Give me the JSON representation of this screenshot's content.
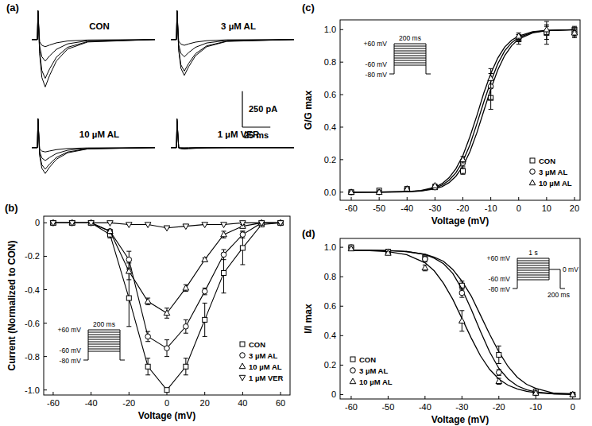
{
  "chart_data": [
    {
      "type": "line",
      "panel": "(a)",
      "title": "CON",
      "tick_labels": false,
      "color": "#000000",
      "x": [
        0,
        5,
        5.5,
        7,
        9,
        12,
        16,
        22,
        32,
        50,
        110
      ],
      "xlim": [
        0,
        110
      ],
      "ylim": [
        -350,
        220
      ],
      "series": [
        {
          "values": [
            0,
            0,
            200,
            -99,
            -264,
            -330,
            -248,
            -149,
            -66,
            -17,
            0
          ]
        },
        {
          "values": [
            0,
            0,
            200,
            -81,
            -216,
            -270,
            -203,
            -122,
            -54,
            -14,
            0
          ]
        },
        {
          "values": [
            0,
            0,
            200,
            -45,
            -120,
            -150,
            -113,
            -68,
            -30,
            -8,
            0
          ]
        },
        {
          "values": [
            0,
            0,
            200,
            -15,
            -40,
            -50,
            -38,
            -23,
            -10,
            -3,
            0
          ]
        }
      ]
    },
    {
      "type": "line",
      "title": "3 µM AL",
      "tick_labels": false,
      "color": "#000000",
      "x": [
        0,
        5,
        5.5,
        7,
        9,
        12,
        16,
        22,
        32,
        50,
        110
      ],
      "xlim": [
        0,
        110
      ],
      "ylim": [
        -350,
        220
      ],
      "series": [
        {
          "values": [
            0,
            0,
            200,
            -75,
            -200,
            -250,
            -188,
            -113,
            -50,
            -13,
            0
          ]
        },
        {
          "values": [
            0,
            0,
            200,
            -66,
            -176,
            -220,
            -165,
            -99,
            -44,
            -11,
            0
          ]
        },
        {
          "values": [
            0,
            0,
            200,
            -36,
            -96,
            -120,
            -90,
            -54,
            -24,
            -6,
            0
          ]
        },
        {
          "values": [
            0,
            0,
            200,
            -12,
            -32,
            -40,
            -30,
            -18,
            -8,
            -2,
            0
          ]
        }
      ],
      "scale_bar": {
        "y": 250,
        "y_label": "250 pA",
        "x": 25,
        "x_label": "25 ms"
      }
    },
    {
      "type": "line",
      "title": "10 µM AL",
      "tick_labels": false,
      "color": "#000000",
      "x": [
        0,
        5,
        5.5,
        7,
        9,
        12,
        16,
        22,
        32,
        50,
        110
      ],
      "xlim": [
        0,
        110
      ],
      "ylim": [
        -350,
        220
      ],
      "series": [
        {
          "values": [
            0,
            0,
            200,
            -54,
            -144,
            -180,
            -135,
            -81,
            -36,
            -9,
            0
          ]
        },
        {
          "values": [
            0,
            0,
            200,
            -45,
            -120,
            -150,
            -113,
            -68,
            -30,
            -8,
            0
          ]
        },
        {
          "values": [
            0,
            0,
            200,
            -27,
            -72,
            -90,
            -68,
            -41,
            -18,
            -5,
            0
          ]
        },
        {
          "values": [
            0,
            0,
            200,
            -9,
            -24,
            -30,
            -23,
            -14,
            -6,
            -2,
            0
          ]
        }
      ]
    },
    {
      "type": "line",
      "title": "1 µM VER",
      "tick_labels": false,
      "color": "#000000",
      "x": [
        0,
        5,
        5.5,
        7,
        9,
        12,
        16,
        22,
        32,
        50,
        110
      ],
      "xlim": [
        0,
        110
      ],
      "ylim": [
        -350,
        220
      ],
      "series": [
        {
          "values": [
            0,
            0,
            200,
            -3,
            -8,
            -10,
            -8,
            -5,
            -2,
            0,
            0
          ]
        },
        {
          "values": [
            0,
            0,
            200,
            -2,
            -4,
            -5,
            -4,
            -2,
            -1,
            0,
            0
          ]
        },
        {
          "values": [
            0,
            0,
            190,
            -1,
            -2,
            -3,
            -2,
            -1,
            0,
            0,
            0
          ]
        },
        {
          "values": [
            0,
            0,
            180,
            0,
            -1,
            -1,
            -1,
            0,
            0,
            0,
            0
          ]
        }
      ]
    },
    {
      "type": "line",
      "panel": "(b)",
      "color": "#000000",
      "x_label": "Voltage (mV)",
      "y_label": "Current (Normalized to CON)",
      "x": [
        -60,
        -50,
        -40,
        -30,
        -20,
        -10,
        0,
        10,
        20,
        30,
        40,
        50,
        60
      ],
      "xlim": [
        -65,
        65
      ],
      "xticks": [
        -60,
        -40,
        -20,
        0,
        20,
        40,
        60
      ],
      "ylim": [
        -1.03,
        0.04
      ],
      "yticks": [
        {
          "value": -1,
          "label": "-1.0"
        },
        -0.8,
        -0.6,
        -0.4,
        -0.2,
        0
      ],
      "legend": "lower right",
      "series": [
        {
          "name": "CON",
          "marker": "square",
          "line_style": "solid",
          "values": [
            0,
            0,
            0,
            -0.07,
            -0.45,
            -0.86,
            -1.0,
            -0.86,
            -0.58,
            -0.3,
            -0.15,
            -0.01,
            0
          ],
          "errors": [
            0,
            0,
            0,
            0.02,
            0.17,
            0.05,
            0.01,
            0.05,
            0.1,
            0.12,
            0.1,
            0.01,
            0
          ]
        },
        {
          "name": "3 µM AL",
          "marker": "circle",
          "line_style": "solid",
          "values": [
            0,
            0,
            0,
            -0.05,
            -0.22,
            -0.68,
            -0.75,
            -0.62,
            -0.41,
            -0.19,
            -0.07,
            0,
            0
          ],
          "errors": [
            0,
            0,
            0,
            0.01,
            0.05,
            0.03,
            0.05,
            0.04,
            0.02,
            0.03,
            0.02,
            0,
            0
          ]
        },
        {
          "name": "10 µM AL",
          "marker": "triangle-up",
          "line_style": "solid",
          "values": [
            0,
            0,
            0,
            -0.05,
            -0.29,
            -0.47,
            -0.54,
            -0.39,
            -0.22,
            -0.07,
            -0.02,
            0,
            0
          ],
          "errors": [
            0,
            0,
            0,
            0.01,
            0.05,
            0.02,
            0.03,
            0.02,
            0.01,
            0.02,
            0.01,
            0,
            0
          ]
        },
        {
          "name": "1 µM VER",
          "marker": "triangle-down",
          "line_style": "solid",
          "values": [
            0,
            0,
            0,
            0,
            -0.01,
            -0.01,
            -0.03,
            -0.02,
            -0.01,
            -0.01,
            0,
            0,
            0
          ],
          "errors": [
            0,
            0,
            0,
            0,
            0,
            0,
            0,
            0,
            0,
            0,
            0,
            0,
            0
          ]
        }
      ],
      "protocol": {
        "high": "+60 mV",
        "low": "-60 mV",
        "hold": "-80 mV",
        "duration": "200 ms"
      }
    },
    {
      "type": "line",
      "panel": "(c)",
      "color": "#000000",
      "x_label": "Voltage (mV)",
      "y_label": "G/G max",
      "x": [
        -60,
        -50,
        -40,
        -30,
        -20,
        -10,
        0,
        10,
        20
      ],
      "fit_x": [
        -60,
        -50,
        -40,
        -35,
        -30,
        -27.5,
        -25,
        -22.5,
        -20,
        -17.5,
        -15,
        -12.5,
        -10,
        -7.5,
        -5,
        -2.5,
        0,
        5,
        10,
        20
      ],
      "xlim": [
        -64,
        22
      ],
      "xticks": [
        -60,
        -50,
        -40,
        -30,
        -20,
        -10,
        0,
        10,
        20
      ],
      "ylim": [
        -0.05,
        1.06
      ],
      "yticks": [
        {
          "value": 0,
          "label": "0.0"
        },
        0.2,
        0.4,
        0.6,
        0.8,
        {
          "value": 1,
          "label": "1.0"
        }
      ],
      "legend": "lower right",
      "series": [
        {
          "name": "CON",
          "marker": "square",
          "line_style": "none",
          "values": [
            0,
            0.01,
            0.02,
            0.03,
            0.13,
            0.58,
            0.94,
            0.98,
            1.0
          ],
          "errors": [
            0,
            0,
            0,
            0.01,
            0.02,
            0.07,
            0.03,
            0.04,
            0.02
          ],
          "fit": [
            0,
            0.0002,
            0.0022,
            0.0067,
            0.02,
            0.034,
            0.058,
            0.098,
            0.159,
            0.248,
            0.365,
            0.5,
            0.635,
            0.752,
            0.841,
            0.902,
            0.942,
            0.98,
            0.993,
            0.999
          ]
        },
        {
          "name": "3 µM AL",
          "marker": "circle",
          "line_style": "none",
          "values": [
            0,
            0,
            0.02,
            0.03,
            0.18,
            0.65,
            0.95,
            0.98,
            0.98
          ],
          "errors": [
            0,
            0,
            0,
            0.01,
            0.02,
            0.08,
            0.02,
            0.07,
            0.03
          ],
          "fit": [
            0,
            0.0003,
            0.0027,
            0.0083,
            0.025,
            0.043,
            0.072,
            0.119,
            0.19,
            0.29,
            0.42,
            0.555,
            0.68,
            0.79,
            0.87,
            0.92,
            0.952,
            0.984,
            0.995,
            0.999
          ]
        },
        {
          "name": "10 µM AL",
          "marker": "triangle-up",
          "line_style": "none",
          "values": [
            0,
            0,
            0.02,
            0.04,
            0.2,
            0.7,
            0.96,
            1.0,
            0.98
          ],
          "errors": [
            0,
            0,
            0,
            0.01,
            0.02,
            0.06,
            0.02,
            0.03,
            0.02
          ],
          "fit": [
            0,
            0.0004,
            0.0035,
            0.01,
            0.03,
            0.052,
            0.088,
            0.144,
            0.225,
            0.34,
            0.47,
            0.61,
            0.73,
            0.825,
            0.893,
            0.935,
            0.96,
            0.987,
            0.996,
            0.999
          ]
        }
      ],
      "protocol": {
        "high": "+60 mV",
        "low": "-60 mV",
        "hold": "-80 mV",
        "duration": "200 ms"
      }
    },
    {
      "type": "line",
      "panel": "(d)",
      "color": "#000000",
      "x_label": "Voltage (mV)",
      "y_label": "I/I max",
      "x": [
        -60,
        -50,
        -40,
        -30,
        -20,
        -10,
        0
      ],
      "fit_x": [
        -60,
        -55,
        -50,
        -45,
        -40,
        -37.5,
        -35,
        -32.5,
        -30,
        -27.5,
        -25,
        -22.5,
        -20,
        -17.5,
        -15,
        -12.5,
        -10,
        -5,
        0
      ],
      "xlim": [
        -63,
        2
      ],
      "xticks": [
        -60,
        -50,
        -40,
        -30,
        -20,
        -10,
        0
      ],
      "ylim": [
        -0.03,
        1.06
      ],
      "yticks": [
        0,
        0.2,
        0.4,
        0.6,
        0.8,
        {
          "value": 1,
          "label": "1.0"
        }
      ],
      "legend": "lower left",
      "series": [
        {
          "name": "CON",
          "marker": "square",
          "line_style": "none",
          "values": [
            1.0,
            0.97,
            0.93,
            0.74,
            0.27,
            0.02,
            0
          ],
          "errors": [
            0.01,
            0.01,
            0.02,
            0.03,
            0.06,
            0.01,
            0
          ],
          "fit": [
            0.98,
            0.979,
            0.977,
            0.971,
            0.952,
            0.933,
            0.905,
            0.85,
            0.77,
            0.67,
            0.54,
            0.41,
            0.29,
            0.19,
            0.117,
            0.07,
            0.042,
            0.009,
            0.005
          ]
        },
        {
          "name": "3 µM AL",
          "marker": "circle",
          "line_style": "none",
          "values": [
            1.0,
            0.97,
            0.92,
            0.69,
            0.15,
            0.01,
            0
          ],
          "errors": [
            0.01,
            0.01,
            0.02,
            0.03,
            0.02,
            0,
            0
          ],
          "fit": [
            0.98,
            0.98,
            0.978,
            0.971,
            0.951,
            0.926,
            0.889,
            0.823,
            0.717,
            0.58,
            0.43,
            0.29,
            0.178,
            0.105,
            0.059,
            0.033,
            0.018,
            0.005,
            0.001
          ]
        },
        {
          "name": "10 µM AL",
          "marker": "triangle-up",
          "line_style": "none",
          "values": [
            0.99,
            0.96,
            0.86,
            0.5,
            0.09,
            0.01,
            0
          ],
          "errors": [
            0.01,
            0.01,
            0.02,
            0.07,
            0.02,
            0,
            0
          ],
          "fit": [
            0.98,
            0.977,
            0.97,
            0.95,
            0.895,
            0.84,
            0.756,
            0.648,
            0.517,
            0.385,
            0.264,
            0.171,
            0.105,
            0.063,
            0.038,
            0.022,
            0.013,
            0.004,
            0.003
          ]
        }
      ],
      "protocol": {
        "high": "+60 mV",
        "low": "-60 mV",
        "hold": "-80 mV",
        "duration": "1 s",
        "test": "0 mV",
        "test_duration": "200 ms"
      }
    }
  ]
}
